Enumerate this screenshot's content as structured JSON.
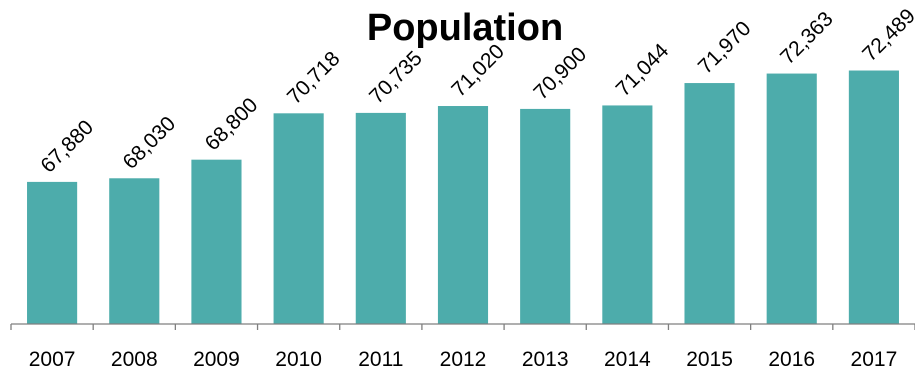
{
  "chart_data": {
    "type": "bar",
    "title": "Population",
    "xlabel": "",
    "ylabel": "",
    "categories": [
      "2007",
      "2008",
      "2009",
      "2010",
      "2011",
      "2012",
      "2013",
      "2014",
      "2015",
      "2016",
      "2017"
    ],
    "values": [
      67880,
      68030,
      68800,
      70718,
      70735,
      71020,
      70900,
      71044,
      71970,
      72363,
      72489
    ],
    "value_labels": [
      "67,880",
      "68,030",
      "68,800",
      "70,718",
      "70,735",
      "71,020",
      "70,900",
      "71,044",
      "71,970",
      "72,363",
      "72,489"
    ],
    "ylim": [
      62000,
      74000
    ],
    "grid": false,
    "legend": "none",
    "bar_color": "#4dacab",
    "axis_color": "#7f7f7f"
  }
}
